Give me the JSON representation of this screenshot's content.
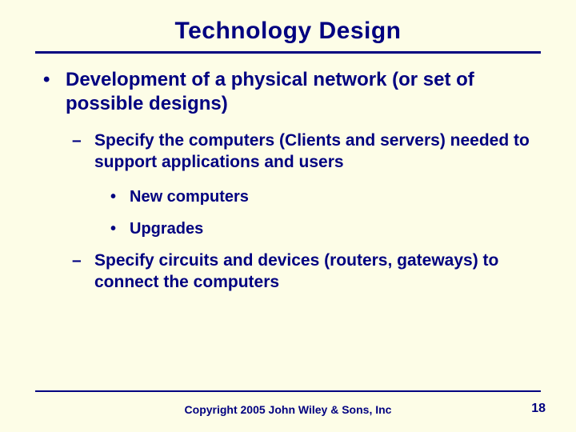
{
  "slide": {
    "title": "Technology Design",
    "bullets": {
      "l1": "Development of a physical network (or set of possible designs)",
      "l2a": "Specify the computers (Clients and servers) needed to support applications and users",
      "l3a": "New computers",
      "l3b": "Upgrades",
      "l2b": "Specify circuits and devices (routers, gateways) to connect the computers"
    },
    "footer": "Copyright 2005 John Wiley & Sons, Inc",
    "page_number": "18",
    "colors": {
      "background": "#fdfde7",
      "text": "#000080",
      "rule": "#000080"
    }
  }
}
